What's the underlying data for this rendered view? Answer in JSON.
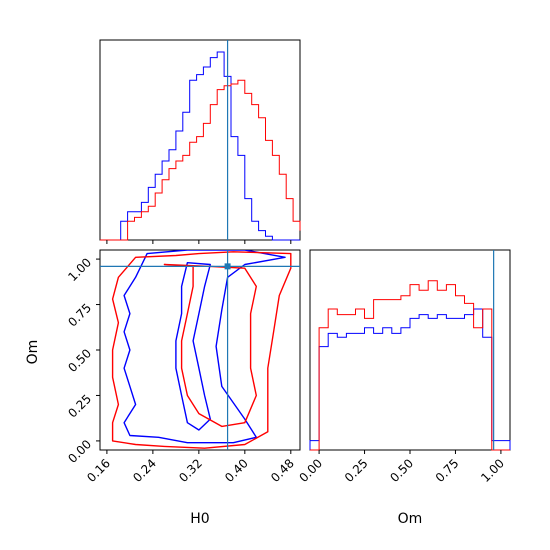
{
  "chart_data": [
    {
      "type": "histogram",
      "panel": "H0-marginal",
      "x": [
        0.148,
        0.16,
        0.172,
        0.184,
        0.196,
        0.208,
        0.22,
        0.232,
        0.244,
        0.256,
        0.268,
        0.28,
        0.292,
        0.304,
        0.316,
        0.328,
        0.34,
        0.352,
        0.364,
        0.376,
        0.388,
        0.4,
        0.412,
        0.424,
        0.436,
        0.448,
        0.46,
        0.472,
        0.484,
        0.496
      ],
      "xlim": [
        0.148,
        0.496
      ],
      "xticks": [
        "0.16",
        "0.24",
        "0.32",
        "0.40",
        "0.48"
      ],
      "truth": 0.37,
      "series": [
        {
          "color": "#0000ff",
          "values": [
            0,
            0,
            0,
            0.1,
            0.15,
            0.15,
            0.2,
            0.28,
            0.35,
            0.42,
            0.48,
            0.58,
            0.68,
            0.85,
            0.88,
            0.92,
            0.97,
            1.0,
            0.87,
            0.55,
            0.45,
            0.22,
            0.1,
            0.05,
            0.02,
            0,
            0,
            0,
            0,
            0
          ]
        },
        {
          "color": "#ff0000",
          "values": [
            0,
            0,
            0,
            0,
            0.1,
            0.12,
            0.15,
            0.18,
            0.25,
            0.32,
            0.38,
            0.42,
            0.45,
            0.52,
            0.55,
            0.62,
            0.72,
            0.8,
            0.82,
            0.83,
            0.85,
            0.78,
            0.72,
            0.65,
            0.53,
            0.45,
            0.35,
            0.22,
            0.1,
            0.05
          ]
        }
      ]
    },
    {
      "type": "contour",
      "panel": "H0-Om-joint",
      "xlabel": "H0",
      "ylabel": "Om",
      "xlim": [
        0.148,
        0.496
      ],
      "ylim": [
        -0.05,
        1.05
      ],
      "xticks": [
        "0.16",
        "0.24",
        "0.32",
        "0.40",
        "0.48"
      ],
      "yticks": [
        "0.00",
        "0.25",
        "0.50",
        "0.75",
        "1.00"
      ],
      "truth": [
        0.37,
        0.96
      ],
      "series": [
        {
          "color": "#0000ff",
          "contours": [
            [
              [
                0.23,
                1.03
              ],
              [
                0.3,
                1.05
              ],
              [
                0.4,
                1.05
              ],
              [
                0.47,
                1.01
              ],
              [
                0.4,
                0.97
              ],
              [
                0.37,
                0.9
              ],
              [
                0.36,
                0.72
              ],
              [
                0.35,
                0.52
              ],
              [
                0.36,
                0.3
              ],
              [
                0.4,
                0.12
              ],
              [
                0.42,
                0.02
              ],
              [
                0.38,
                -0.01
              ],
              [
                0.3,
                -0.01
              ],
              [
                0.25,
                0.02
              ],
              [
                0.2,
                0.03
              ],
              [
                0.19,
                0.1
              ],
              [
                0.21,
                0.2
              ],
              [
                0.2,
                0.3
              ],
              [
                0.19,
                0.4
              ],
              [
                0.2,
                0.5
              ],
              [
                0.19,
                0.6
              ],
              [
                0.2,
                0.7
              ],
              [
                0.19,
                0.8
              ],
              [
                0.21,
                0.9
              ],
              [
                0.23,
                1.03
              ]
            ],
            [
              [
                0.3,
                0.98
              ],
              [
                0.34,
                0.97
              ],
              [
                0.33,
                0.85
              ],
              [
                0.32,
                0.7
              ],
              [
                0.31,
                0.55
              ],
              [
                0.32,
                0.4
              ],
              [
                0.33,
                0.25
              ],
              [
                0.34,
                0.12
              ],
              [
                0.32,
                0.06
              ],
              [
                0.3,
                0.1
              ],
              [
                0.29,
                0.25
              ],
              [
                0.28,
                0.4
              ],
              [
                0.28,
                0.55
              ],
              [
                0.29,
                0.7
              ],
              [
                0.29,
                0.85
              ],
              [
                0.3,
                0.98
              ]
            ]
          ]
        },
        {
          "color": "#ff0000",
          "contours": [
            [
              [
                0.21,
                1.01
              ],
              [
                0.28,
                1.02
              ],
              [
                0.32,
                1.03
              ],
              [
                0.38,
                1.04
              ],
              [
                0.48,
                1.03
              ],
              [
                0.48,
                0.95
              ],
              [
                0.46,
                0.8
              ],
              [
                0.45,
                0.6
              ],
              [
                0.44,
                0.4
              ],
              [
                0.44,
                0.2
              ],
              [
                0.44,
                0.05
              ],
              [
                0.4,
                -0.02
              ],
              [
                0.33,
                -0.04
              ],
              [
                0.26,
                -0.03
              ],
              [
                0.21,
                -0.02
              ],
              [
                0.17,
                0.0
              ],
              [
                0.17,
                0.1
              ],
              [
                0.18,
                0.2
              ],
              [
                0.17,
                0.35
              ],
              [
                0.17,
                0.5
              ],
              [
                0.18,
                0.65
              ],
              [
                0.17,
                0.78
              ],
              [
                0.18,
                0.9
              ],
              [
                0.21,
                1.01
              ]
            ],
            [
              [
                0.26,
                0.97
              ],
              [
                0.31,
                0.96
              ],
              [
                0.31,
                0.85
              ],
              [
                0.3,
                0.7
              ],
              [
                0.29,
                0.55
              ],
              [
                0.29,
                0.4
              ],
              [
                0.3,
                0.25
              ],
              [
                0.32,
                0.15
              ],
              [
                0.36,
                0.08
              ],
              [
                0.4,
                0.1
              ],
              [
                0.42,
                0.25
              ],
              [
                0.41,
                0.4
              ],
              [
                0.41,
                0.55
              ],
              [
                0.41,
                0.7
              ],
              [
                0.42,
                0.85
              ],
              [
                0.4,
                0.95
              ],
              [
                0.34,
                0.96
              ],
              [
                0.26,
                0.97
              ]
            ]
          ]
        }
      ]
    },
    {
      "type": "histogram",
      "panel": "Om-marginal",
      "xlabel": "Om",
      "x": [
        -0.05,
        0.0,
        0.05,
        0.1,
        0.15,
        0.2,
        0.25,
        0.3,
        0.35,
        0.4,
        0.45,
        0.5,
        0.55,
        0.6,
        0.65,
        0.7,
        0.75,
        0.8,
        0.85,
        0.9,
        0.95,
        1.0,
        1.05
      ],
      "xlim": [
        -0.05,
        1.05
      ],
      "xticks": [
        "0.00",
        "0.25",
        "0.50",
        "0.75",
        "1.00"
      ],
      "truth": 0.96,
      "series": [
        {
          "color": "#0000ff",
          "values": [
            0.05,
            0.55,
            0.62,
            0.6,
            0.62,
            0.62,
            0.65,
            0.62,
            0.65,
            0.62,
            0.65,
            0.7,
            0.72,
            0.7,
            0.72,
            0.7,
            0.7,
            0.72,
            0.75,
            0.6,
            0.05,
            0.05
          ]
        },
        {
          "color": "#ff0000",
          "values": [
            0,
            0.65,
            0.75,
            0.72,
            0.72,
            0.75,
            0.7,
            0.8,
            0.8,
            0.8,
            0.82,
            0.88,
            0.85,
            0.9,
            0.85,
            0.88,
            0.82,
            0.78,
            0.65,
            0.75,
            0,
            0
          ]
        }
      ]
    }
  ]
}
